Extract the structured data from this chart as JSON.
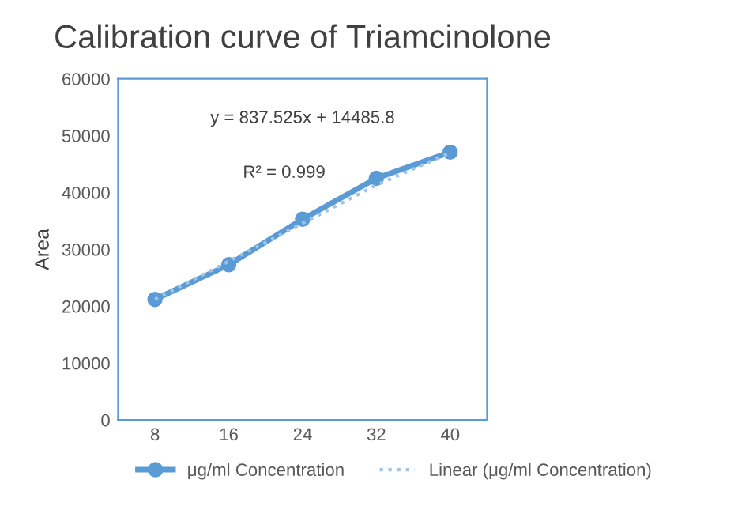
{
  "chart_data": {
    "type": "line",
    "title": "Calibration curve of Triamcinolone",
    "ylabel": "Area",
    "categories": [
      "8",
      "16",
      "24",
      "32",
      "40"
    ],
    "series": [
      {
        "name": "μg/ml Concentration",
        "color": "#5b9bd5",
        "values": [
          21200,
          27300,
          35300,
          42500,
          47100
        ],
        "marker": "circle",
        "line_style": "solid"
      },
      {
        "name": "Linear (μg/ml Concentration)",
        "color": "#9dc3e6",
        "values": [
          21200,
          27900,
          34600,
          41300,
          47000
        ],
        "marker": "none",
        "line_style": "dotted"
      }
    ],
    "ylim": [
      0,
      60000
    ],
    "yticks": [
      0,
      10000,
      20000,
      30000,
      40000,
      50000,
      60000
    ],
    "grid": false,
    "legend": "bottom",
    "annotations": [
      "y = 837.525x + 14485.8",
      "R² = 0.999"
    ]
  }
}
